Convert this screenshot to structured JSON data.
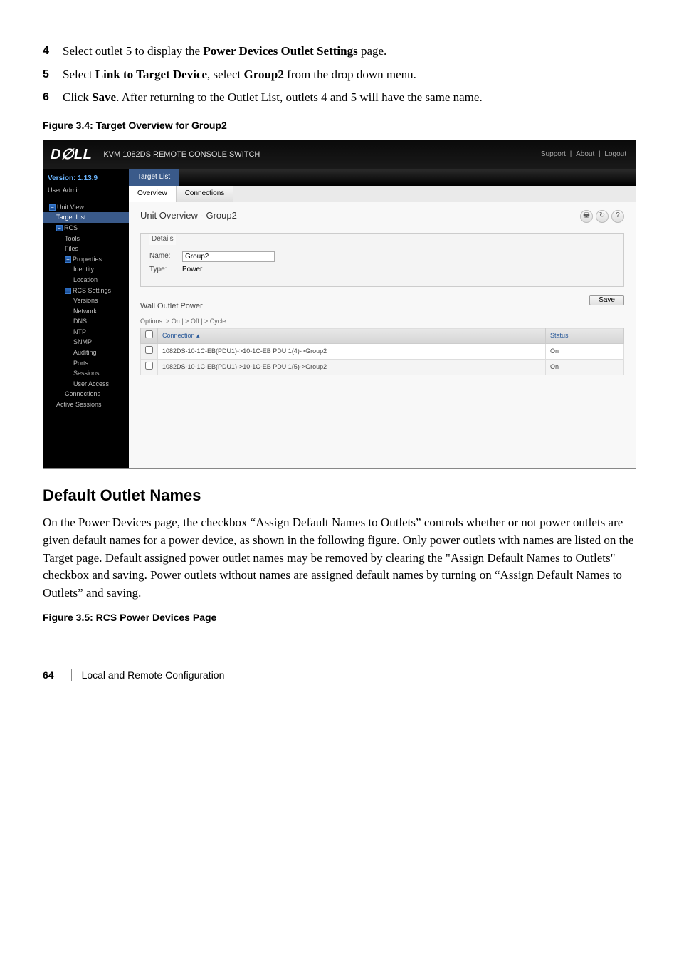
{
  "steps": [
    {
      "num": "4",
      "html": "Select outlet 5 to display the <b>Power Devices Outlet Settings</b> page."
    },
    {
      "num": "5",
      "html": "Select <b>Link to Target Device</b>, select <b>Group2</b> from the drop down menu."
    },
    {
      "num": "6",
      "html": "Click <b>Save</b>. After returning to the Outlet List, outlets 4 and 5 will have the same name."
    }
  ],
  "figure1_caption": "Figure 3.4: Target Overview for Group2",
  "screenshot": {
    "logo": "D∅LL",
    "header_title": "KVM 1082DS REMOTE CONSOLE SWITCH",
    "header_links": [
      "Support",
      "About",
      "Logout"
    ],
    "sidebar": {
      "version_label": "Version: 1.13.9",
      "user_admin": "User Admin",
      "tree": [
        {
          "level": 1,
          "label": "Unit View",
          "icon": true
        },
        {
          "level": 2,
          "label": "Target List",
          "highlight": true
        },
        {
          "level": 2,
          "label": "RCS",
          "icon": true
        },
        {
          "level": 3,
          "label": "Tools"
        },
        {
          "level": 3,
          "label": "Files"
        },
        {
          "level": 3,
          "label": "Properties",
          "icon": true
        },
        {
          "level": 4,
          "label": "Identity"
        },
        {
          "level": 4,
          "label": "Location"
        },
        {
          "level": 3,
          "label": "RCS Settings",
          "icon": true
        },
        {
          "level": 4,
          "label": "Versions"
        },
        {
          "level": 4,
          "label": "Network"
        },
        {
          "level": 4,
          "label": "DNS"
        },
        {
          "level": 4,
          "label": "NTP"
        },
        {
          "level": 4,
          "label": "SNMP"
        },
        {
          "level": 4,
          "label": "Auditing"
        },
        {
          "level": 4,
          "label": "Ports"
        },
        {
          "level": 4,
          "label": "Sessions"
        },
        {
          "level": 4,
          "label": "User Access"
        },
        {
          "level": 3,
          "label": "Connections"
        },
        {
          "level": 2,
          "label": "Active Sessions"
        }
      ]
    },
    "main": {
      "toptab": "Target List",
      "subtabs": [
        "Overview",
        "Connections"
      ],
      "active_subtab": 0,
      "overview_title": "Unit Overview - Group2",
      "details_legend": "Details",
      "name_label": "Name:",
      "name_value": "Group2",
      "type_label": "Type:",
      "type_value": "Power",
      "save_label": "Save",
      "wall_title": "Wall Outlet Power",
      "options_text": "Options:  > On  |  > Off  |  > Cycle",
      "table": {
        "col1": "Connection ▴",
        "col2": "Status",
        "rows": [
          {
            "conn": "1082DS-10-1C-EB(PDU1)->10-1C-EB PDU 1(4)->Group2",
            "status": "On"
          },
          {
            "conn": "1082DS-10-1C-EB(PDU1)->10-1C-EB PDU 1(5)->Group2",
            "status": "On"
          }
        ]
      }
    }
  },
  "section_heading": "Default Outlet Names",
  "body_para": "On the Power Devices page, the checkbox “Assign Default Names to Outlets” controls whether or not power outlets are given default names for a power device, as shown in the following figure. Only power outlets with names are listed on the Target page. Default assigned power outlet names may be removed by clearing the \"Assign Default Names to Outlets\" checkbox and saving. Power outlets without names are assigned default names by turning on “Assign Default Names to Outlets” and saving.",
  "figure2_caption": "Figure 3.5: RCS Power Devices Page",
  "footer": {
    "page": "64",
    "chapter": "Local and Remote Configuration"
  }
}
